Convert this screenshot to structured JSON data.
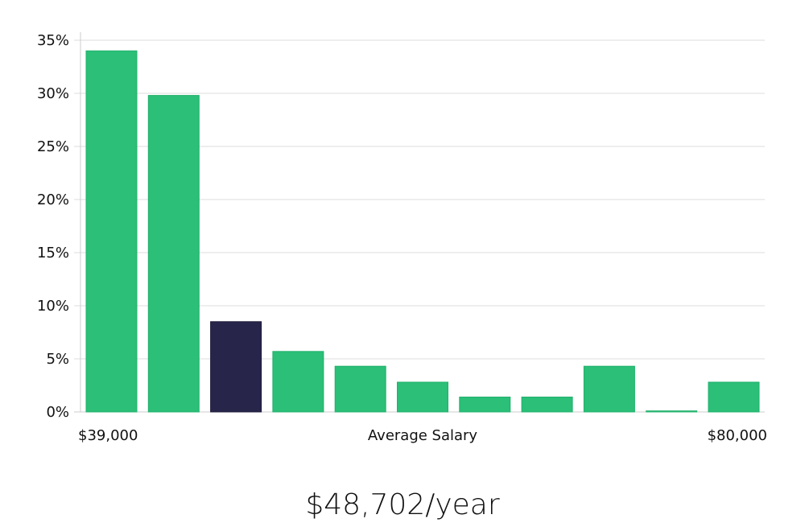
{
  "chart_data": {
    "type": "bar",
    "title": "",
    "xlabel": "Average Salary",
    "x_tick_labels": [
      "$39,000",
      "$80,000"
    ],
    "y_tick_labels": [
      "0%",
      "5%",
      "10%",
      "15%",
      "20%",
      "25%",
      "30%",
      "35%"
    ],
    "ylim": [
      0,
      35
    ],
    "grid": true,
    "values": [
      34.0,
      29.8,
      8.5,
      5.7,
      4.3,
      2.8,
      1.4,
      1.4,
      4.3,
      0.1,
      2.8
    ],
    "highlight_index": 2,
    "colors": {
      "bar": "#2bbf78",
      "highlight": "#27254a",
      "grid": "#dddddd",
      "axis": "#cccccc"
    }
  },
  "salary_display": "$48,702/year"
}
